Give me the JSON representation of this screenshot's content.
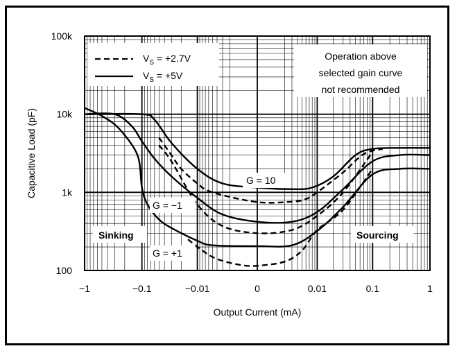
{
  "chart_data": {
    "type": "line",
    "xlabel": "Output Current (mA)",
    "ylabel": "Capacitive Load (pF)",
    "x_scale": "symmetric-log",
    "y_scale": "log",
    "x_ticks": [
      "−1",
      "−0.1",
      "−0.01",
      "0",
      "0.01",
      "0.1",
      "1"
    ],
    "x_tick_values": [
      -1,
      -0.1,
      -0.01,
      0,
      0.01,
      0.1,
      1
    ],
    "y_ticks": [
      "100",
      "1k",
      "10k",
      "100k"
    ],
    "y_tick_values": [
      100,
      1000,
      10000,
      100000
    ],
    "xlim": [
      -1,
      1
    ],
    "ylim": [
      100,
      100000
    ],
    "grid": true,
    "legend": {
      "position": "top-left",
      "entries": [
        {
          "style": "dashed",
          "label_main": "V",
          "label_sub": "S",
          "label_rest": " = +2.7V"
        },
        {
          "style": "solid",
          "label_main": "V",
          "label_sub": "S",
          "label_rest": " = +5V"
        }
      ]
    },
    "annotations": {
      "note_line1": "Operation above",
      "note_line2": "selected gain curve",
      "note_line3": "not recommended",
      "sinking": "Sinking",
      "sourcing": "Sourcing",
      "g10": "G = 10",
      "gm1": "G = −1",
      "gp1": "G = +1"
    },
    "series": [
      {
        "style": "solid",
        "x": [
          -1,
          -0.1,
          -0.06,
          -0.03,
          -0.01,
          -0.003,
          0,
          0.003,
          0.008,
          0.02,
          0.05,
          0.1,
          0.3,
          1
        ],
        "y": [
          10000,
          10000,
          8500,
          4300,
          2000,
          1300,
          1150,
          1100,
          1150,
          1600,
          3000,
          3600,
          3700,
          3700
        ]
      },
      {
        "style": "solid",
        "x": [
          -1,
          -0.3,
          -0.15,
          -0.1,
          -0.06,
          -0.03,
          -0.01,
          -0.003,
          0,
          0.003,
          0.01,
          0.03,
          0.1,
          0.3,
          1
        ],
        "y": [
          10000,
          10000,
          7000,
          4500,
          2700,
          1600,
          850,
          520,
          420,
          420,
          560,
          1100,
          2500,
          3000,
          3000
        ]
      },
      {
        "style": "solid",
        "x": [
          -1,
          -0.5,
          -0.25,
          -0.12,
          -0.1,
          -0.08,
          -0.05,
          -0.03,
          -0.01,
          -0.005,
          0,
          0.003,
          0.01,
          0.03,
          0.1,
          0.3,
          1
        ],
        "y": [
          12000,
          9500,
          6500,
          3000,
          1150,
          700,
          450,
          350,
          240,
          210,
          205,
          210,
          320,
          650,
          1700,
          2000,
          2000
        ]
      },
      {
        "style": "dashed",
        "x": [
          -0.05,
          -0.03,
          -0.02,
          -0.01,
          -0.005,
          0,
          0.003,
          0.006,
          0.01,
          0.03,
          0.07,
          0.15
        ],
        "y": [
          5000,
          3000,
          2000,
          1300,
          1000,
          750,
          760,
          820,
          1000,
          1800,
          3100,
          3600
        ]
      },
      {
        "style": "dashed",
        "x": [
          -0.05,
          -0.03,
          -0.01,
          -0.003,
          0,
          0.003,
          0.01,
          0.03,
          0.1
        ],
        "y": [
          4000,
          2500,
          700,
          370,
          300,
          330,
          500,
          1000,
          3300
        ]
      },
      {
        "style": "dashed",
        "x": [
          -0.015,
          -0.008,
          -0.004,
          -0.001,
          0,
          0.002,
          0.005,
          0.01,
          0.03,
          0.1
        ],
        "y": [
          250,
          180,
          140,
          118,
          115,
          130,
          180,
          330,
          600,
          2000
        ]
      }
    ]
  }
}
